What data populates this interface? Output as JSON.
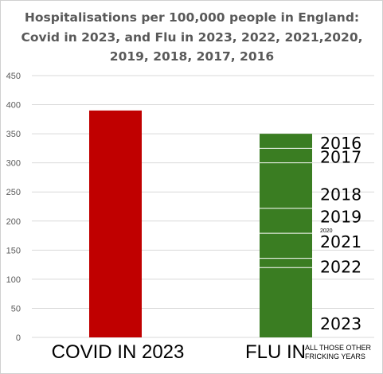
{
  "chart_data": {
    "type": "bar",
    "stacked": true,
    "title_lines": [
      "Hospitalisations per 100,000 people in England:",
      "Covid in 2023, and Flu in 2023, 2022, 2021,2020,",
      "2019, 2018, 2017, 2016"
    ],
    "ylim": [
      0,
      450
    ],
    "yticks": [
      0,
      50,
      100,
      150,
      200,
      250,
      300,
      350,
      400,
      450
    ],
    "grid": true,
    "legend": "none",
    "categories": [
      {
        "label": "COVID IN 2023",
        "sublabel": ""
      },
      {
        "label": "FLU IN",
        "sublabel": [
          "ALL THOSE OTHER",
          "FRICKING YEARS"
        ]
      }
    ],
    "bars": [
      {
        "category": 0,
        "color": "#c00000",
        "segments": [
          {
            "value": 390,
            "label": ""
          }
        ]
      },
      {
        "category": 1,
        "color": "#3a7d22",
        "separator_color": "#ffffff",
        "segments": [
          {
            "label": "2023",
            "value": 120
          },
          {
            "label": "2022",
            "value": 16
          },
          {
            "label": "2021",
            "value": 43
          },
          {
            "label": "2020",
            "value": 0,
            "small": true
          },
          {
            "label": "2019",
            "value": 43
          },
          {
            "label": "2018",
            "value": 78
          },
          {
            "label": "2017",
            "value": 25
          },
          {
            "label": "2016",
            "value": 25
          }
        ]
      }
    ]
  }
}
